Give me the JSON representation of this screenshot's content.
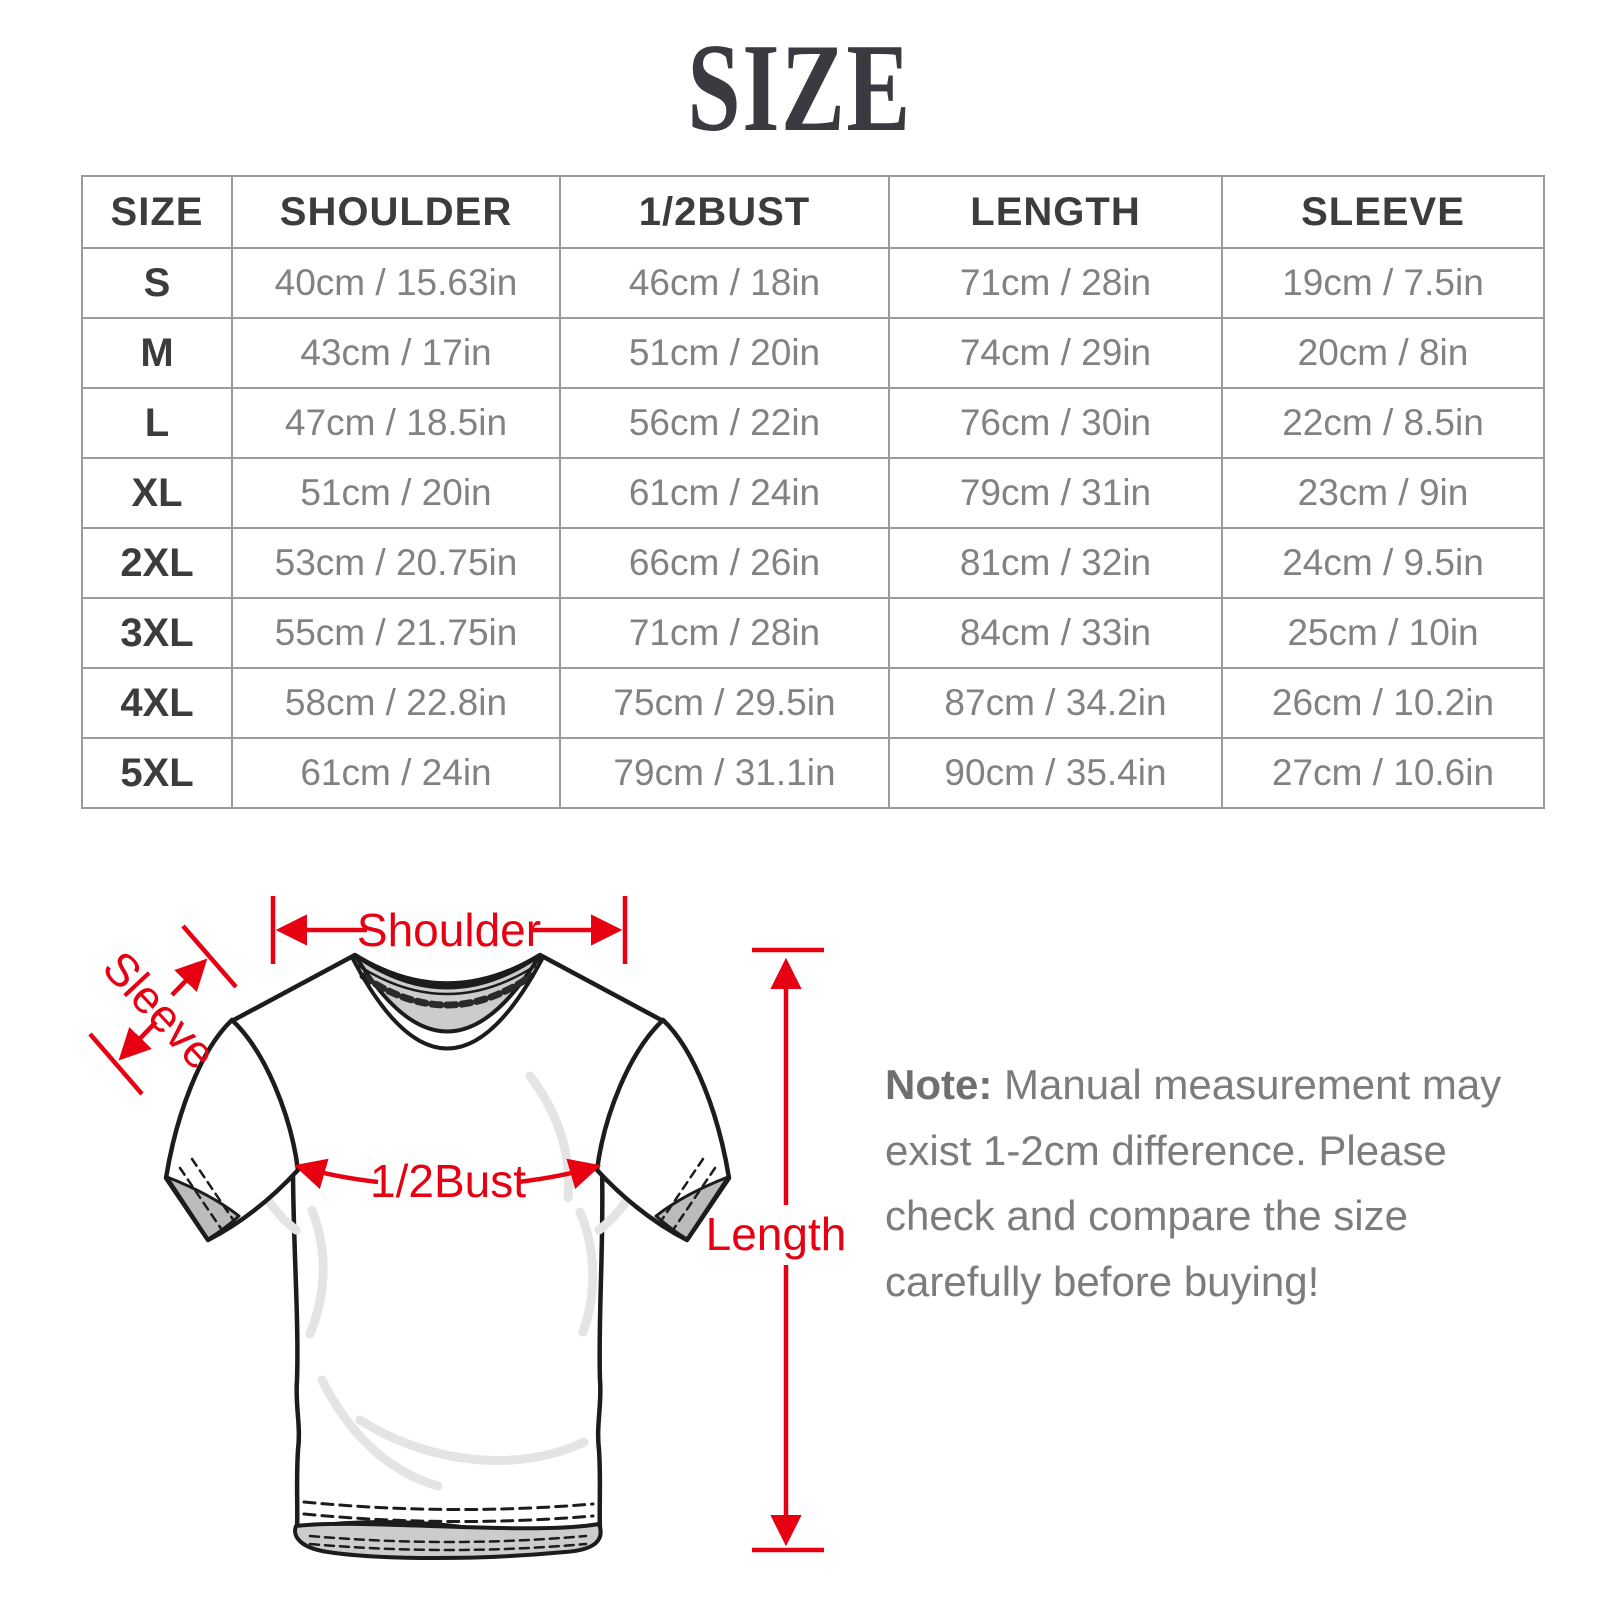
{
  "title": "SIZE",
  "table": {
    "headers": [
      "SIZE",
      "SHOULDER",
      "1/2BUST",
      "LENGTH",
      "SLEEVE"
    ],
    "rows": [
      [
        "S",
        "40cm / 15.63in",
        "46cm / 18in",
        "71cm / 28in",
        "19cm / 7.5in"
      ],
      [
        "M",
        "43cm / 17in",
        "51cm / 20in",
        "74cm / 29in",
        "20cm / 8in"
      ],
      [
        "L",
        "47cm / 18.5in",
        "56cm / 22in",
        "76cm / 30in",
        "22cm / 8.5in"
      ],
      [
        "XL",
        "51cm / 20in",
        "61cm / 24in",
        "79cm / 31in",
        "23cm / 9in"
      ],
      [
        "2XL",
        "53cm / 20.75in",
        "66cm / 26in",
        "81cm / 32in",
        "24cm / 9.5in"
      ],
      [
        "3XL",
        "55cm / 21.75in",
        "71cm / 28in",
        "84cm / 33in",
        "25cm / 10in"
      ],
      [
        "4XL",
        "58cm / 22.8in",
        "75cm / 29.5in",
        "87cm / 34.2in",
        "26cm / 10.2in"
      ],
      [
        "5XL",
        "61cm / 24in",
        "79cm / 31.1in",
        "90cm / 35.4in",
        "27cm / 10.6in"
      ]
    ]
  },
  "diagram": {
    "labels": {
      "shoulder": "Shoulder",
      "sleeve": "Sleeve",
      "bust": "1/2Bust",
      "length": "Length"
    },
    "accent_color": "#e60012"
  },
  "note": {
    "label": "Note:",
    "text": " Manual measurement may exist 1-2cm difference. Please check and compare the size carefully before buying!"
  }
}
